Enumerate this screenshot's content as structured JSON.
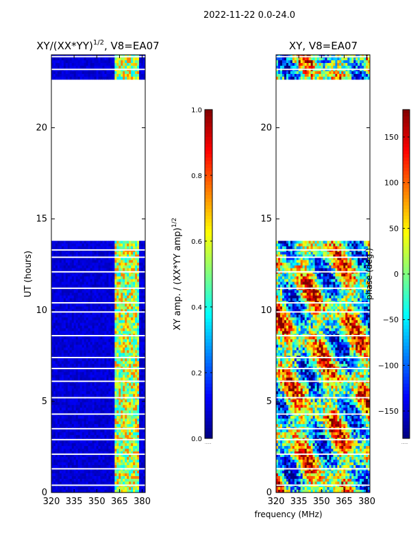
{
  "suptitle": "2022-11-22 0.0-24.0",
  "xlabel_shared": "frequency (MHz)",
  "colors": {
    "background": "#ffffff",
    "axis": "#000000",
    "colormap": [
      "#00007f",
      "#0000ff",
      "#007fff",
      "#00ffff",
      "#7fff7f",
      "#ffff00",
      "#ff7f00",
      "#ff0000",
      "#7f0000"
    ]
  },
  "chart_data": [
    {
      "type": "heatmap",
      "title_main": "XY/(XX*YY)",
      "title_sup": "1/2",
      "title_tail": ", V8=EA07",
      "xlabel": "",
      "ylabel": "UT (hours)",
      "xlim": [
        320,
        382
      ],
      "ylim": [
        0,
        24
      ],
      "xticks": [
        320,
        335,
        350,
        365,
        380
      ],
      "yticks": [
        0,
        5,
        10,
        15,
        20
      ],
      "data_gap_hours": [
        13.8,
        22.6
      ],
      "bright_band_MHz": [
        362,
        378
      ],
      "colorbar": {
        "label": "XY amp. / (XX*YY amp)",
        "label_sup": "1/2",
        "range": [
          0.0,
          1.0
        ],
        "ticks": [
          "0.0",
          "0.2",
          "0.4",
          "0.6",
          "0.8",
          "1.0"
        ],
        "tick_values": [
          0.0,
          0.2,
          0.4,
          0.6,
          0.8,
          1.0
        ],
        "offset_text": "......"
      }
    },
    {
      "type": "heatmap",
      "title": "XY, V8=EA07",
      "xlabel": "frequency (MHz)",
      "ylabel": "",
      "xlim": [
        320,
        382
      ],
      "ylim": [
        0,
        24
      ],
      "xticks": [
        320,
        335,
        350,
        365,
        380
      ],
      "yticks": [
        0,
        5,
        10,
        15,
        20
      ],
      "data_gap_hours": [
        13.8,
        22.6
      ],
      "colorbar": {
        "label": "phase (deg.)",
        "range": [
          -180,
          180
        ],
        "ticks": [
          "−150",
          "−100",
          "−50",
          "0",
          "50",
          "100",
          "150"
        ],
        "tick_values": [
          -150,
          -100,
          -50,
          0,
          50,
          100,
          150
        ],
        "offset_text": "......"
      }
    }
  ]
}
